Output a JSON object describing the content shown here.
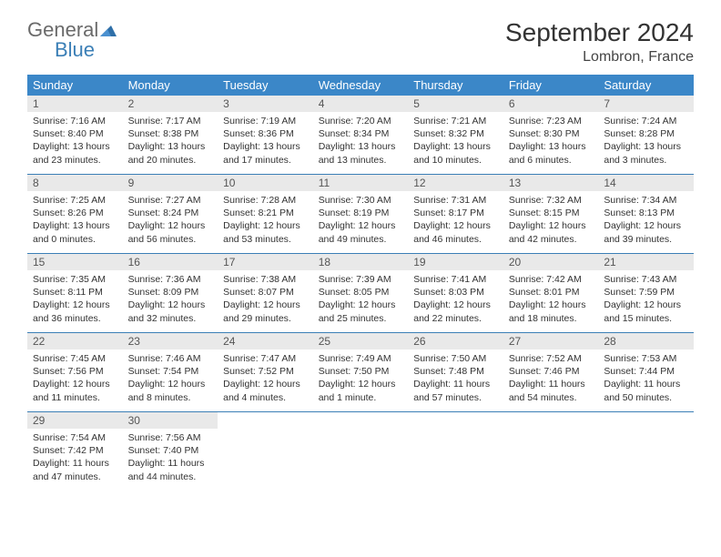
{
  "logo": {
    "part1": "General",
    "part2": "Blue"
  },
  "title": "September 2024",
  "location": "Lombron, France",
  "colors": {
    "header_bg": "#3b87c8",
    "header_fg": "#ffffff",
    "daynum_bg": "#e9e9e9",
    "rule": "#3b7fb6",
    "logo_gray": "#6a6a6a",
    "logo_blue": "#3b7fb6"
  },
  "weekdays": [
    "Sunday",
    "Monday",
    "Tuesday",
    "Wednesday",
    "Thursday",
    "Friday",
    "Saturday"
  ],
  "weeks": [
    [
      {
        "n": "1",
        "sr": "Sunrise: 7:16 AM",
        "ss": "Sunset: 8:40 PM",
        "d1": "Daylight: 13 hours",
        "d2": "and 23 minutes."
      },
      {
        "n": "2",
        "sr": "Sunrise: 7:17 AM",
        "ss": "Sunset: 8:38 PM",
        "d1": "Daylight: 13 hours",
        "d2": "and 20 minutes."
      },
      {
        "n": "3",
        "sr": "Sunrise: 7:19 AM",
        "ss": "Sunset: 8:36 PM",
        "d1": "Daylight: 13 hours",
        "d2": "and 17 minutes."
      },
      {
        "n": "4",
        "sr": "Sunrise: 7:20 AM",
        "ss": "Sunset: 8:34 PM",
        "d1": "Daylight: 13 hours",
        "d2": "and 13 minutes."
      },
      {
        "n": "5",
        "sr": "Sunrise: 7:21 AM",
        "ss": "Sunset: 8:32 PM",
        "d1": "Daylight: 13 hours",
        "d2": "and 10 minutes."
      },
      {
        "n": "6",
        "sr": "Sunrise: 7:23 AM",
        "ss": "Sunset: 8:30 PM",
        "d1": "Daylight: 13 hours",
        "d2": "and 6 minutes."
      },
      {
        "n": "7",
        "sr": "Sunrise: 7:24 AM",
        "ss": "Sunset: 8:28 PM",
        "d1": "Daylight: 13 hours",
        "d2": "and 3 minutes."
      }
    ],
    [
      {
        "n": "8",
        "sr": "Sunrise: 7:25 AM",
        "ss": "Sunset: 8:26 PM",
        "d1": "Daylight: 13 hours",
        "d2": "and 0 minutes."
      },
      {
        "n": "9",
        "sr": "Sunrise: 7:27 AM",
        "ss": "Sunset: 8:24 PM",
        "d1": "Daylight: 12 hours",
        "d2": "and 56 minutes."
      },
      {
        "n": "10",
        "sr": "Sunrise: 7:28 AM",
        "ss": "Sunset: 8:21 PM",
        "d1": "Daylight: 12 hours",
        "d2": "and 53 minutes."
      },
      {
        "n": "11",
        "sr": "Sunrise: 7:30 AM",
        "ss": "Sunset: 8:19 PM",
        "d1": "Daylight: 12 hours",
        "d2": "and 49 minutes."
      },
      {
        "n": "12",
        "sr": "Sunrise: 7:31 AM",
        "ss": "Sunset: 8:17 PM",
        "d1": "Daylight: 12 hours",
        "d2": "and 46 minutes."
      },
      {
        "n": "13",
        "sr": "Sunrise: 7:32 AM",
        "ss": "Sunset: 8:15 PM",
        "d1": "Daylight: 12 hours",
        "d2": "and 42 minutes."
      },
      {
        "n": "14",
        "sr": "Sunrise: 7:34 AM",
        "ss": "Sunset: 8:13 PM",
        "d1": "Daylight: 12 hours",
        "d2": "and 39 minutes."
      }
    ],
    [
      {
        "n": "15",
        "sr": "Sunrise: 7:35 AM",
        "ss": "Sunset: 8:11 PM",
        "d1": "Daylight: 12 hours",
        "d2": "and 36 minutes."
      },
      {
        "n": "16",
        "sr": "Sunrise: 7:36 AM",
        "ss": "Sunset: 8:09 PM",
        "d1": "Daylight: 12 hours",
        "d2": "and 32 minutes."
      },
      {
        "n": "17",
        "sr": "Sunrise: 7:38 AM",
        "ss": "Sunset: 8:07 PM",
        "d1": "Daylight: 12 hours",
        "d2": "and 29 minutes."
      },
      {
        "n": "18",
        "sr": "Sunrise: 7:39 AM",
        "ss": "Sunset: 8:05 PM",
        "d1": "Daylight: 12 hours",
        "d2": "and 25 minutes."
      },
      {
        "n": "19",
        "sr": "Sunrise: 7:41 AM",
        "ss": "Sunset: 8:03 PM",
        "d1": "Daylight: 12 hours",
        "d2": "and 22 minutes."
      },
      {
        "n": "20",
        "sr": "Sunrise: 7:42 AM",
        "ss": "Sunset: 8:01 PM",
        "d1": "Daylight: 12 hours",
        "d2": "and 18 minutes."
      },
      {
        "n": "21",
        "sr": "Sunrise: 7:43 AM",
        "ss": "Sunset: 7:59 PM",
        "d1": "Daylight: 12 hours",
        "d2": "and 15 minutes."
      }
    ],
    [
      {
        "n": "22",
        "sr": "Sunrise: 7:45 AM",
        "ss": "Sunset: 7:56 PM",
        "d1": "Daylight: 12 hours",
        "d2": "and 11 minutes."
      },
      {
        "n": "23",
        "sr": "Sunrise: 7:46 AM",
        "ss": "Sunset: 7:54 PM",
        "d1": "Daylight: 12 hours",
        "d2": "and 8 minutes."
      },
      {
        "n": "24",
        "sr": "Sunrise: 7:47 AM",
        "ss": "Sunset: 7:52 PM",
        "d1": "Daylight: 12 hours",
        "d2": "and 4 minutes."
      },
      {
        "n": "25",
        "sr": "Sunrise: 7:49 AM",
        "ss": "Sunset: 7:50 PM",
        "d1": "Daylight: 12 hours",
        "d2": "and 1 minute."
      },
      {
        "n": "26",
        "sr": "Sunrise: 7:50 AM",
        "ss": "Sunset: 7:48 PM",
        "d1": "Daylight: 11 hours",
        "d2": "and 57 minutes."
      },
      {
        "n": "27",
        "sr": "Sunrise: 7:52 AM",
        "ss": "Sunset: 7:46 PM",
        "d1": "Daylight: 11 hours",
        "d2": "and 54 minutes."
      },
      {
        "n": "28",
        "sr": "Sunrise: 7:53 AM",
        "ss": "Sunset: 7:44 PM",
        "d1": "Daylight: 11 hours",
        "d2": "and 50 minutes."
      }
    ],
    [
      {
        "n": "29",
        "sr": "Sunrise: 7:54 AM",
        "ss": "Sunset: 7:42 PM",
        "d1": "Daylight: 11 hours",
        "d2": "and 47 minutes."
      },
      {
        "n": "30",
        "sr": "Sunrise: 7:56 AM",
        "ss": "Sunset: 7:40 PM",
        "d1": "Daylight: 11 hours",
        "d2": "and 44 minutes."
      },
      null,
      null,
      null,
      null,
      null
    ]
  ]
}
